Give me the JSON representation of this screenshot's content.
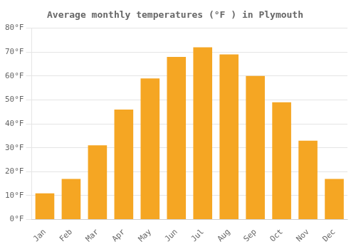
{
  "chart_data": {
    "type": "bar",
    "title": "Average monthly temperatures (°F ) in Plymouth",
    "categories": [
      "Jan",
      "Feb",
      "Mar",
      "Apr",
      "May",
      "Jun",
      "Jul",
      "Aug",
      "Sep",
      "Oct",
      "Nov",
      "Dec"
    ],
    "values": [
      11,
      17,
      31,
      46,
      59,
      68,
      72,
      69,
      60,
      49,
      33,
      17
    ],
    "color": "#F5A623",
    "ylim": [
      0,
      80
    ],
    "yticks": [
      {
        "value": 0,
        "label": "0°F"
      },
      {
        "value": 10,
        "label": "10°F"
      },
      {
        "value": 20,
        "label": "20°F"
      },
      {
        "value": 30,
        "label": "30°F"
      },
      {
        "value": 40,
        "label": "40°F"
      },
      {
        "value": 50,
        "label": "50°F"
      },
      {
        "value": 60,
        "label": "60°F"
      },
      {
        "value": 70,
        "label": "70°F"
      },
      {
        "value": 80,
        "label": "80°F"
      }
    ],
    "grid": true
  }
}
